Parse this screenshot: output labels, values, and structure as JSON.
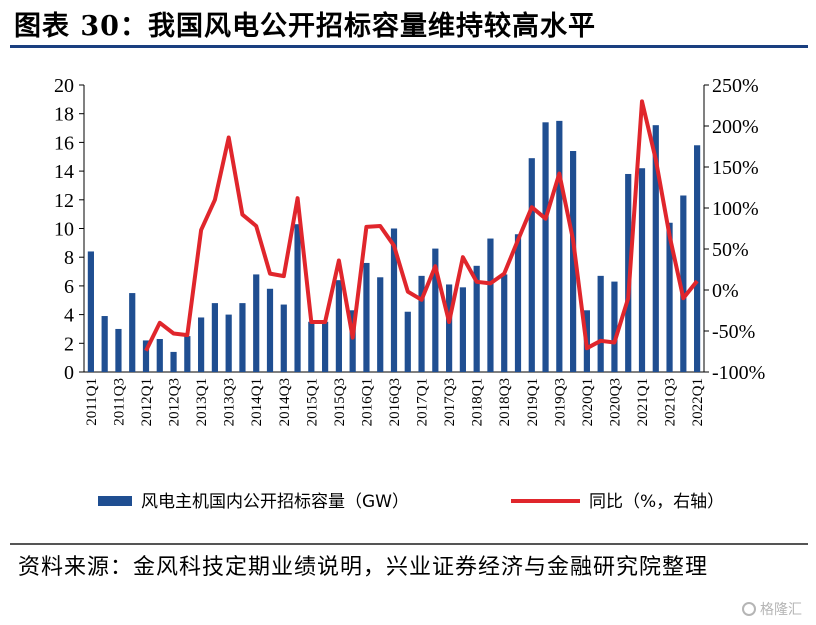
{
  "title": "图表 30：我国风电公开招标容量维持较高水平",
  "source": "资料来源：金风科技定期业绩说明，兴业证券经济与金融研究院整理",
  "watermark": "格隆汇",
  "colors": {
    "bar": "#1f4e91",
    "line": "#e0262c",
    "rule": "#1a3f80"
  },
  "chart_data": {
    "type": "bar",
    "categories": [
      "2011Q1",
      "2011Q2",
      "2011Q3",
      "2011Q4",
      "2012Q1",
      "2012Q2",
      "2012Q3",
      "2012Q4",
      "2013Q1",
      "2013Q2",
      "2013Q3",
      "2013Q4",
      "2014Q1",
      "2014Q2",
      "2014Q3",
      "2014Q4",
      "2015Q1",
      "2015Q2",
      "2015Q3",
      "2015Q4",
      "2016Q1",
      "2016Q2",
      "2016Q3",
      "2016Q4",
      "2017Q1",
      "2017Q2",
      "2017Q3",
      "2017Q4",
      "2018Q1",
      "2018Q2",
      "2018Q3",
      "2018Q4",
      "2019Q1",
      "2019Q2",
      "2019Q3",
      "2019Q4",
      "2020Q1",
      "2020Q2",
      "2020Q3",
      "2020Q4",
      "2021Q1",
      "2021Q2",
      "2021Q3",
      "2021Q4",
      "2022Q1"
    ],
    "x_tick_labels": [
      "2011Q1",
      "2011Q3",
      "2012Q1",
      "2012Q3",
      "2013Q1",
      "2013Q3",
      "2014Q1",
      "2014Q3",
      "2015Q1",
      "2015Q3",
      "2016Q1",
      "2016Q3",
      "2017Q1",
      "2017Q3",
      "2018Q1",
      "2018Q3",
      "2019Q1",
      "2019Q3",
      "2020Q1",
      "2020Q3",
      "2021Q1",
      "2021Q3",
      "2022Q1"
    ],
    "series": [
      {
        "name": "风电主机国内公开招标容量（GW）",
        "type": "bar",
        "axis": "left",
        "values": [
          8.4,
          3.9,
          3.0,
          5.5,
          2.2,
          2.3,
          1.4,
          2.5,
          3.8,
          4.8,
          4.0,
          4.8,
          6.8,
          5.8,
          4.7,
          10.3,
          3.5,
          3.5,
          6.4,
          4.3,
          7.6,
          6.6,
          10.0,
          4.2,
          6.7,
          8.6,
          6.1,
          5.9,
          7.4,
          9.3,
          6.8,
          9.6,
          14.9,
          17.4,
          17.5,
          15.4,
          4.3,
          6.7,
          6.3,
          13.8,
          14.2,
          17.2,
          10.4,
          12.3,
          15.8
        ]
      },
      {
        "name": "同比（%，右轴）",
        "type": "line",
        "axis": "right",
        "values": [
          null,
          null,
          null,
          null,
          -74,
          -40,
          -53,
          -55,
          73,
          110,
          186,
          92,
          78,
          20,
          17,
          112,
          -39,
          -39,
          36,
          -58,
          77,
          78,
          54,
          -2,
          -12,
          29,
          -39,
          40,
          10,
          8,
          20,
          61,
          101,
          87,
          142,
          61,
          -71,
          -62,
          -64,
          -10,
          230,
          159,
          66,
          -10,
          11
        ]
      }
    ],
    "y_left": {
      "min": 0,
      "max": 20,
      "ticks": [
        "0",
        "2",
        "4",
        "6",
        "8",
        "10",
        "12",
        "14",
        "16",
        "18",
        "20"
      ]
    },
    "y_right": {
      "min": -100,
      "max": 250,
      "ticks": [
        "-100%",
        "-50%",
        "0%",
        "50%",
        "100%",
        "150%",
        "200%",
        "250%"
      ]
    },
    "legend": [
      {
        "label": "风电主机国内公开招标容量（GW）",
        "symbol": "bar"
      },
      {
        "label": "同比（%，右轴）",
        "symbol": "line"
      }
    ],
    "legend_placement": "bottom",
    "grid": false
  }
}
